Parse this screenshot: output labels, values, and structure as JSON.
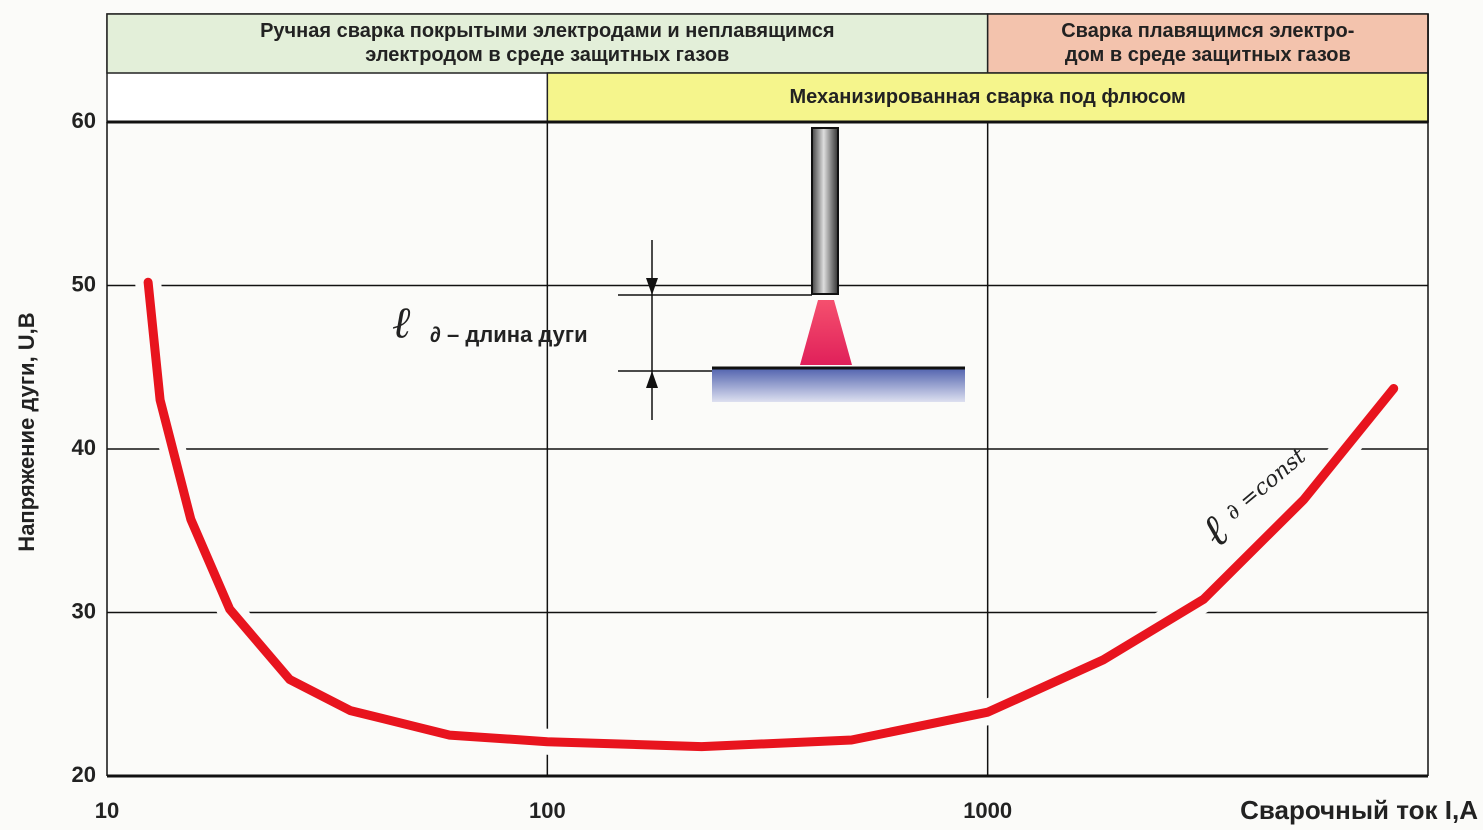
{
  "chart_data": {
    "type": "line",
    "x_label": "Сварочный ток I,A",
    "y_label": "Напряжение дуги,  U,В",
    "x": [
      12.4,
      13.2,
      15.5,
      19,
      26,
      35.7,
      60,
      100,
      224,
      491,
      1000,
      1830,
      3090,
      5220,
      8360
    ],
    "values": [
      50.2,
      43,
      35.7,
      30.2,
      25.9,
      24,
      22.5,
      22.1,
      21.8,
      22.2,
      23.9,
      27.1,
      30.8,
      36.9,
      43.7
    ],
    "color": "#e8141e",
    "log_x": true,
    "xlim": [
      10,
      10000
    ],
    "xticks": [
      10,
      100,
      1000
    ],
    "ylim": [
      20,
      60
    ],
    "yticks": [
      20,
      30,
      40,
      50,
      60
    ],
    "grid": true,
    "bands": [
      {
        "row": 1,
        "from": 10,
        "to": 1000,
        "color": "#e3efd9",
        "lines": [
          "Ручная сварка покрытыми электродами и неплавящимся",
          "электродом в среде защитных газов"
        ]
      },
      {
        "row": 1,
        "from": 1000,
        "to": 10000,
        "color": "#f3c3ad",
        "lines": [
          "Сварка плавящимся электро-",
          "дом в среде защитных газов"
        ]
      },
      {
        "row": 2,
        "from": 100,
        "to": 10000,
        "color": "#f5f58c",
        "lines": [
          "Механизированная сварка под флюсом"
        ]
      }
    ],
    "arc_length_label": {
      "symbol": "ℓ",
      "text": "∂ – длина дуги"
    },
    "curve_label": {
      "symbol": "ℓ",
      "text": "∂ =const"
    }
  }
}
